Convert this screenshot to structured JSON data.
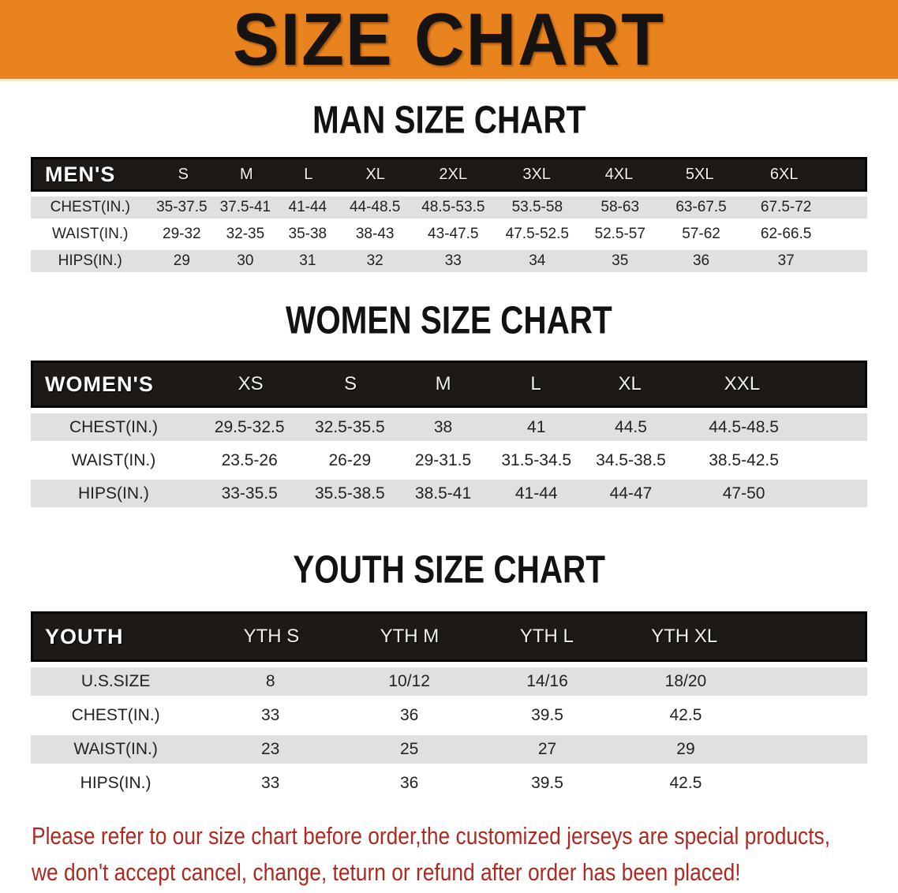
{
  "banner": {
    "title": "SIZE CHART",
    "background_color": "#E8831E",
    "text_color": "#161310"
  },
  "sections": {
    "men": {
      "heading": "MAN SIZE CHART",
      "table": {
        "label": "MEN'S",
        "sizes": [
          "S",
          "M",
          "L",
          "XL",
          "2XL",
          "3XL",
          "4XL",
          "5XL",
          "6XL"
        ],
        "rows": [
          {
            "label": "CHEST(IN.)",
            "values": [
              "35-37.5",
              "37.5-41",
              "41-44",
              "44-48.5",
              "48.5-53.5",
              "53.5-58",
              "58-63",
              "63-67.5",
              "67.5-72"
            ]
          },
          {
            "label": "WAIST(IN.)",
            "values": [
              "29-32",
              "32-35",
              "35-38",
              "38-43",
              "43-47.5",
              "47.5-52.5",
              "52.5-57",
              "57-62",
              "62-66.5"
            ]
          },
          {
            "label": "HIPS(IN.)",
            "values": [
              "29",
              "30",
              "31",
              "32",
              "33",
              "34",
              "35",
              "36",
              "37"
            ]
          }
        ]
      }
    },
    "women": {
      "heading": "WOMEN SIZE CHART",
      "table": {
        "label": "WOMEN'S",
        "sizes": [
          "XS",
          "S",
          "M",
          "L",
          "XL",
          "XXL"
        ],
        "rows": [
          {
            "label": "CHEST(IN.)",
            "values": [
              "29.5-32.5",
              "32.5-35.5",
              "38",
              "41",
              "44.5",
              "44.5-48.5"
            ]
          },
          {
            "label": "WAIST(IN.)",
            "values": [
              "23.5-26",
              "26-29",
              "29-31.5",
              "31.5-34.5",
              "34.5-38.5",
              "38.5-42.5"
            ]
          },
          {
            "label": "HIPS(IN.)",
            "values": [
              "33-35.5",
              "35.5-38.5",
              "38.5-41",
              "41-44",
              "44-47",
              "47-50"
            ]
          }
        ]
      }
    },
    "youth": {
      "heading": "YOUTH SIZE CHART",
      "table": {
        "label": "YOUTH",
        "sizes": [
          "YTH S",
          "YTH M",
          "YTH L",
          "YTH XL"
        ],
        "rows": [
          {
            "label": "U.S.SIZE",
            "values": [
              "8",
              "10/12",
              "14/16",
              "18/20"
            ]
          },
          {
            "label": "CHEST(IN.)",
            "values": [
              "33",
              "36",
              "39.5",
              "42.5"
            ]
          },
          {
            "label": "WAIST(IN.)",
            "values": [
              "23",
              "25",
              "27",
              "29"
            ]
          },
          {
            "label": "HIPS(IN.)",
            "values": [
              "33",
              "36",
              "39.5",
              "42.5"
            ]
          }
        ]
      }
    }
  },
  "disclaimer": {
    "line1": "Please refer to our size chart before order,the customized jerseys are special products,",
    "line2": "we don't accept cancel, change, teturn or refund after order has been placed!",
    "text_color": "#AD2A21"
  },
  "colors": {
    "header_band": "#1c1916",
    "row_stripe": "#E0E0E0",
    "row_plain": "#ffffff"
  }
}
